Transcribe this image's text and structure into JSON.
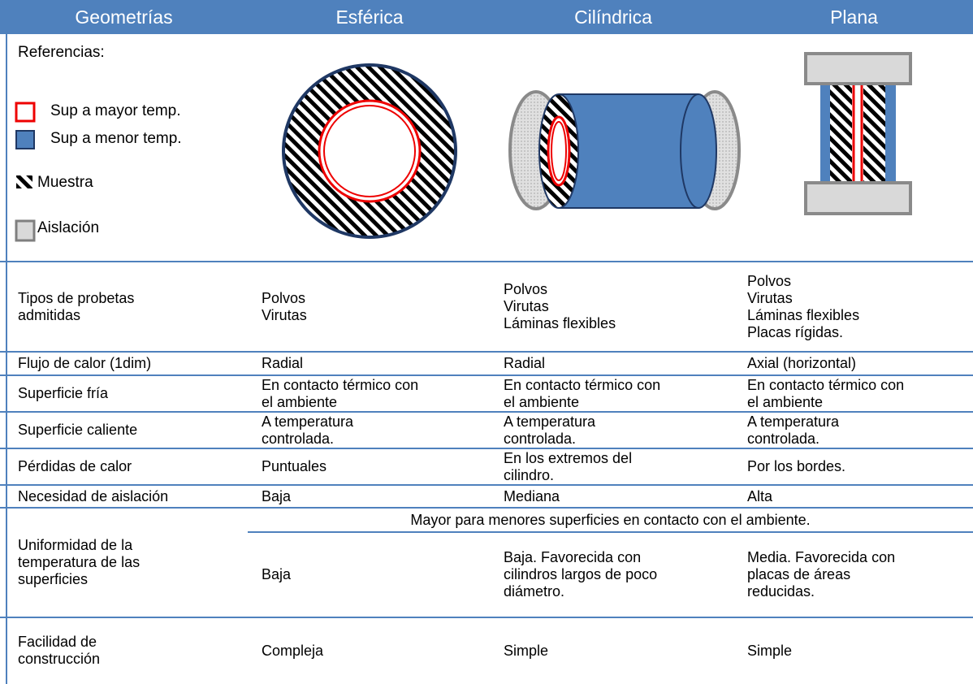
{
  "header": [
    "Geometrías",
    "Esférica",
    "Cilíndrica",
    "Plana"
  ],
  "legend": {
    "title": "Referencias:",
    "items": [
      "Sup a mayor temp.",
      "Sup a menor temp.",
      "Muestra",
      "Aislación"
    ]
  },
  "table": {
    "rows": [
      {
        "label": [
          "Tipos de probetas",
          "admitidas"
        ],
        "cells": [
          [
            "Polvos",
            "Virutas"
          ],
          [
            "Polvos",
            "Virutas",
            "Láminas flexibles"
          ],
          [
            "Polvos",
            "Virutas",
            "Láminas flexibles",
            "Placas rígidas."
          ]
        ]
      },
      {
        "label": [
          "Flujo de calor (1dim)"
        ],
        "cells": [
          [
            "Radial"
          ],
          [
            "Radial"
          ],
          [
            "Axial (horizontal)"
          ]
        ]
      },
      {
        "label": [
          "Superficie fría"
        ],
        "cells": [
          [
            "En contacto térmico con",
            "el ambiente"
          ],
          [
            "En contacto térmico con",
            "el ambiente"
          ],
          [
            "En contacto térmico con",
            "el ambiente"
          ]
        ]
      },
      {
        "label": [
          "Superficie caliente"
        ],
        "cells": [
          [
            "A temperatura",
            "controlada."
          ],
          [
            "A temperatura",
            "controlada."
          ],
          [
            "A temperatura",
            "controlada."
          ]
        ]
      },
      {
        "label": [
          "Pérdidas de calor"
        ],
        "cells": [
          [
            "Puntuales"
          ],
          [
            "En los extremos del",
            "cilindro."
          ],
          [
            "Por los bordes."
          ]
        ]
      },
      {
        "label": [
          "Necesidad de aislación"
        ],
        "cells": [
          [
            "Baja"
          ],
          [
            "Mediana"
          ],
          [
            "Alta"
          ]
        ]
      },
      {
        "label": [
          "Uniformidad de la",
          "temperatura de las",
          "superficies"
        ],
        "note": "Mayor para menores superficies en contacto con el ambiente.",
        "cells": [
          [
            "Baja"
          ],
          [
            "Baja. Favorecida con",
            "cilindros largos de poco",
            "diámetro."
          ],
          [
            "Media. Favorecida con",
            "placas de áreas",
            "reducidas."
          ]
        ]
      },
      {
        "label": [
          "Facilidad de",
          "construcción"
        ],
        "cells": [
          [
            "Compleja"
          ],
          [
            "Simple"
          ],
          [
            "Simple"
          ]
        ]
      }
    ]
  }
}
